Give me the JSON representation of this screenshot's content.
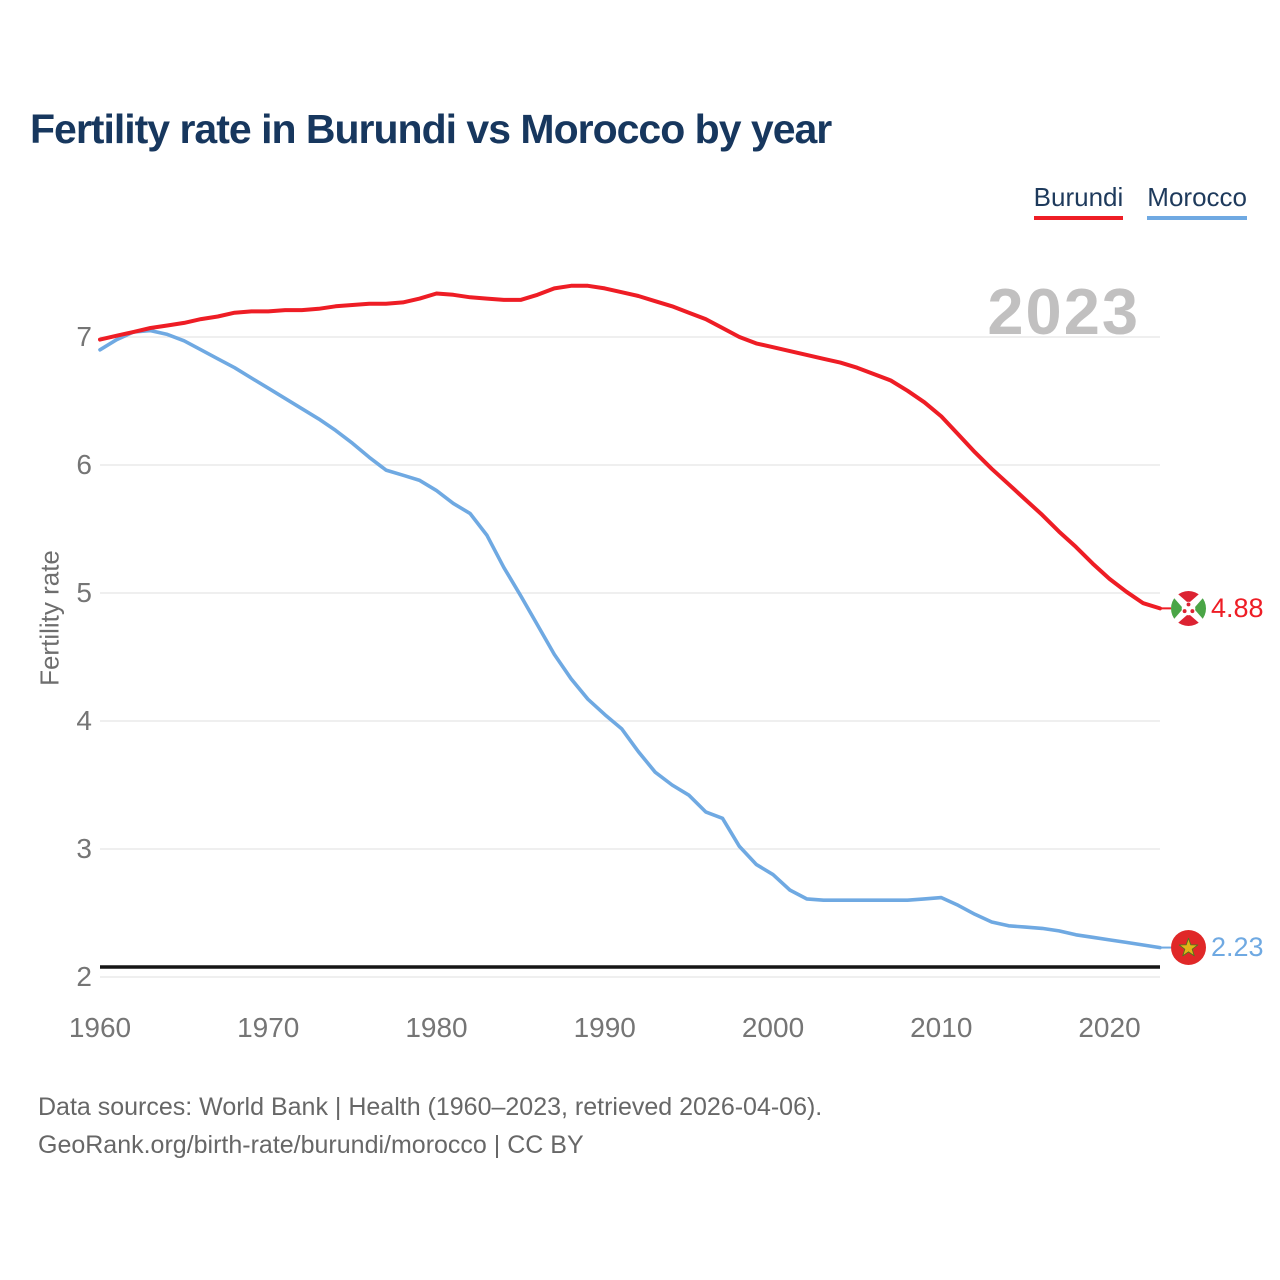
{
  "header": {
    "title": "Fertility rate in Burundi vs Morocco by year"
  },
  "watermark": "2023",
  "footer": {
    "line1": "Data sources: World Bank | Health (1960–2023, retrieved 2026-04-06).",
    "line2": "GeoRank.org/birth-rate/burundi/morocco | CC BY"
  },
  "colors": {
    "burundi": "#ee1d25",
    "morocco": "#6fa9e2",
    "gridline": "#eaeaea",
    "axis_line": "#151515",
    "tick_text": "#757575",
    "watermark_text": "#c1c0c0"
  },
  "chart_data": {
    "type": "line",
    "title": "Fertility rate in Burundi vs Morocco by year",
    "xlabel": "",
    "ylabel": "Fertility rate",
    "x_range": [
      1960,
      2023
    ],
    "y_range_drawn": [
      2,
      7.45
    ],
    "y_ticks": [
      2,
      3,
      4,
      5,
      6,
      7
    ],
    "x_ticks": [
      1960,
      1970,
      1980,
      1990,
      2000,
      2010,
      2020
    ],
    "grid": "horizontal",
    "legend_position": "top-right",
    "x": [
      1960,
      1961,
      1962,
      1963,
      1964,
      1965,
      1966,
      1967,
      1968,
      1969,
      1970,
      1971,
      1972,
      1973,
      1974,
      1975,
      1976,
      1977,
      1978,
      1979,
      1980,
      1981,
      1982,
      1983,
      1984,
      1985,
      1986,
      1987,
      1988,
      1989,
      1990,
      1991,
      1992,
      1993,
      1994,
      1995,
      1996,
      1997,
      1998,
      1999,
      2000,
      2001,
      2002,
      2003,
      2004,
      2005,
      2006,
      2007,
      2008,
      2009,
      2010,
      2011,
      2012,
      2013,
      2014,
      2015,
      2016,
      2017,
      2018,
      2019,
      2020,
      2021,
      2022,
      2023
    ],
    "series": [
      {
        "name": "Burundi",
        "color": "#ee1d25",
        "end_label": "4.88",
        "values": [
          6.98,
          7.01,
          7.04,
          7.07,
          7.09,
          7.11,
          7.14,
          7.16,
          7.19,
          7.2,
          7.2,
          7.21,
          7.21,
          7.22,
          7.24,
          7.25,
          7.26,
          7.26,
          7.27,
          7.3,
          7.34,
          7.33,
          7.31,
          7.3,
          7.29,
          7.29,
          7.33,
          7.38,
          7.4,
          7.4,
          7.38,
          7.35,
          7.32,
          7.28,
          7.24,
          7.19,
          7.14,
          7.07,
          7.0,
          6.95,
          6.92,
          6.89,
          6.86,
          6.83,
          6.8,
          6.76,
          6.71,
          6.66,
          6.58,
          6.49,
          6.38,
          6.24,
          6.1,
          5.97,
          5.85,
          5.73,
          5.61,
          5.48,
          5.36,
          5.23,
          5.11,
          5.01,
          4.92,
          4.88
        ]
      },
      {
        "name": "Morocco",
        "color": "#6fa9e2",
        "end_label": "2.23",
        "values": [
          6.9,
          6.98,
          7.04,
          7.05,
          7.02,
          6.97,
          6.9,
          6.83,
          6.76,
          6.68,
          6.6,
          6.52,
          6.44,
          6.36,
          6.27,
          6.17,
          6.06,
          5.96,
          5.92,
          5.88,
          5.8,
          5.7,
          5.62,
          5.45,
          5.2,
          4.98,
          4.75,
          4.52,
          4.33,
          4.17,
          4.05,
          3.94,
          3.76,
          3.6,
          3.5,
          3.42,
          3.29,
          3.24,
          3.02,
          2.88,
          2.8,
          2.68,
          2.61,
          2.6,
          2.6,
          2.6,
          2.6,
          2.6,
          2.6,
          2.61,
          2.62,
          2.56,
          2.49,
          2.43,
          2.4,
          2.39,
          2.38,
          2.36,
          2.33,
          2.31,
          2.29,
          2.27,
          2.25,
          2.23
        ]
      }
    ]
  }
}
